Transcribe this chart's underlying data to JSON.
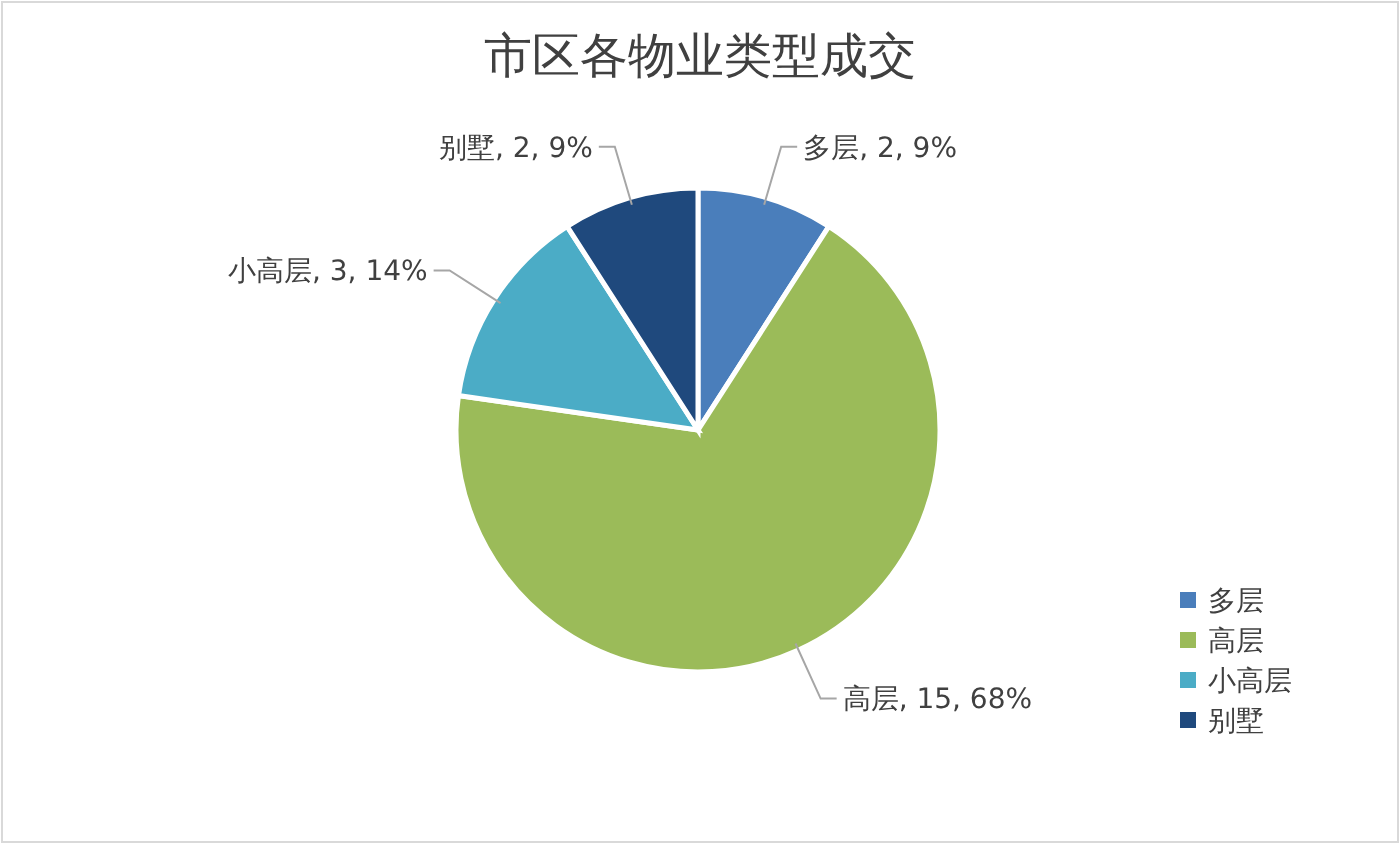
{
  "chart_data": {
    "type": "pie",
    "title": "市区各物业类型成交",
    "categories": [
      "多层",
      "高层",
      "小高层",
      "别墅"
    ],
    "values": [
      2,
      15,
      3,
      2
    ],
    "colors": [
      "#4a7ebb",
      "#9bbb59",
      "#4bacc6",
      "#1f497d"
    ],
    "value_labels": [
      "多层, 2, 9%",
      "高层, 15, 68%",
      "小高层, 3, 14%",
      "别墅, 2, 9%"
    ],
    "legend": "bottom right"
  }
}
